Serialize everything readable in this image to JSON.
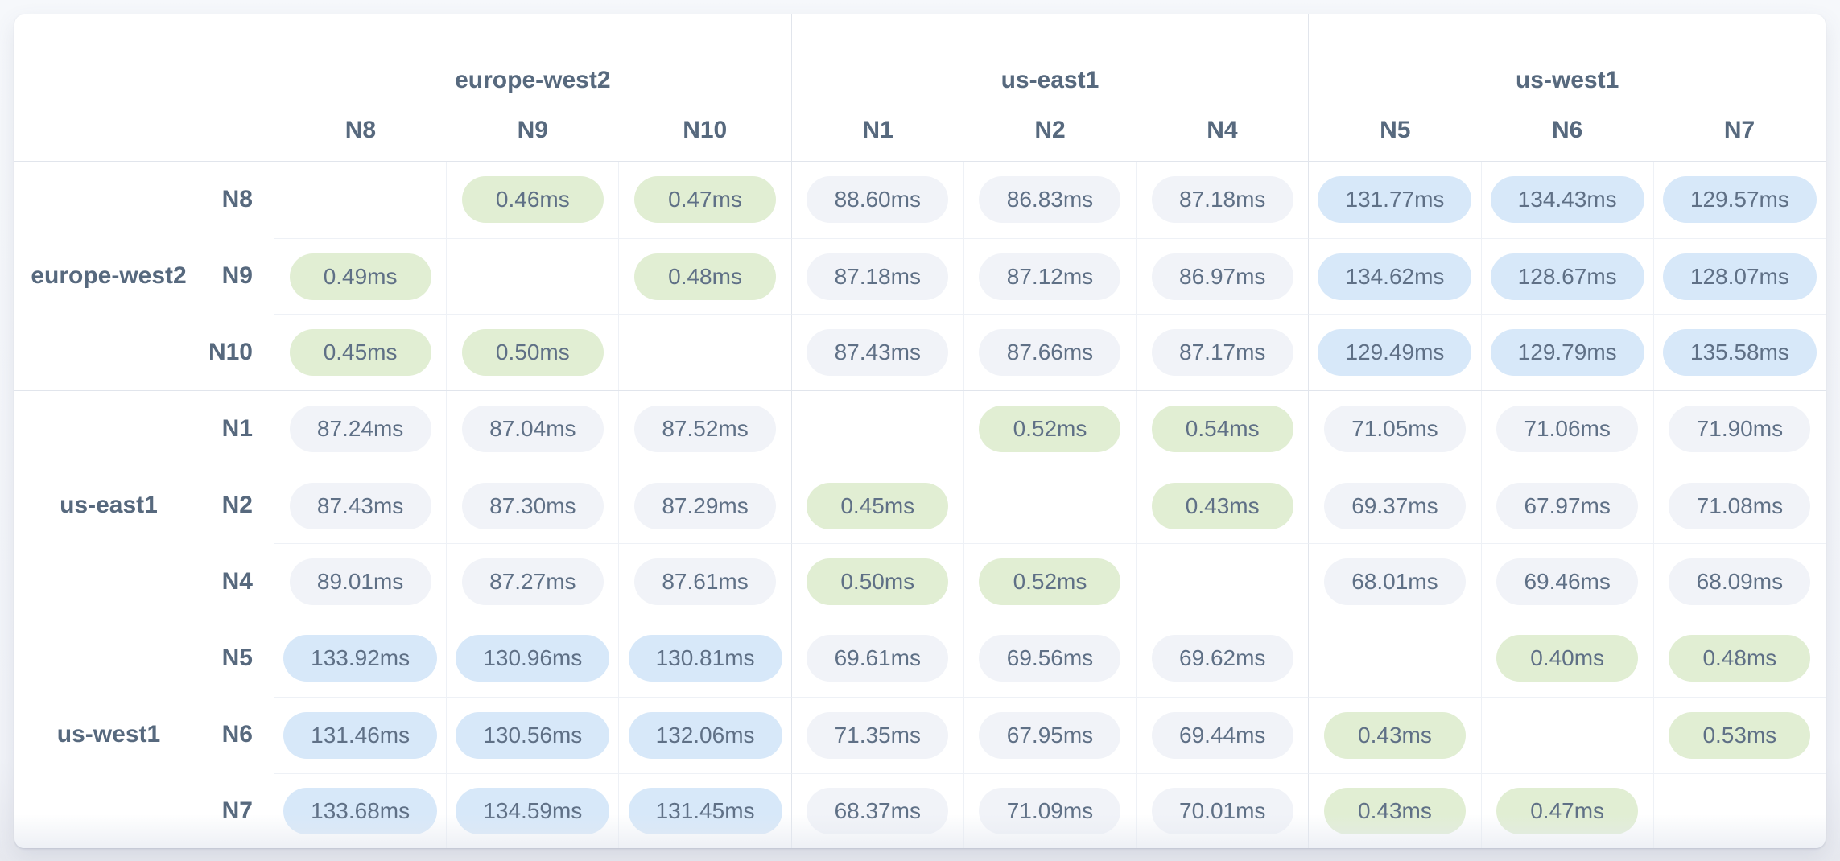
{
  "colors": {
    "page_bg": "#f1f3f8",
    "table_bg": "#ffffff",
    "label_text": "#57697e",
    "pill_text": "#5f7086",
    "group_border": "#e1e5ec",
    "cell_border": "#eef1f6",
    "intra_region_pill_bg": "#e1eed3",
    "inter_region_medium_pill_bg": "#f1f3f8",
    "inter_region_high_pill_bg": "#d7e8f9"
  },
  "chart_data": {
    "type": "heatmap",
    "title": "",
    "unit": "ms",
    "value_format": "0.00ms",
    "regions": [
      {
        "name": "europe-west2",
        "nodes": [
          "N8",
          "N9",
          "N10"
        ]
      },
      {
        "name": "us-east1",
        "nodes": [
          "N1",
          "N2",
          "N4"
        ]
      },
      {
        "name": "us-west1",
        "nodes": [
          "N5",
          "N6",
          "N7"
        ]
      }
    ],
    "nodes": [
      "N8",
      "N9",
      "N10",
      "N1",
      "N2",
      "N4",
      "N5",
      "N6",
      "N7"
    ],
    "values_ms": [
      [
        null,
        0.46,
        0.47,
        88.6,
        86.83,
        87.18,
        131.77,
        134.43,
        129.57
      ],
      [
        0.49,
        null,
        0.48,
        87.18,
        87.12,
        86.97,
        134.62,
        128.67,
        128.07
      ],
      [
        0.45,
        0.5,
        null,
        87.43,
        87.66,
        87.17,
        129.49,
        129.79,
        135.58
      ],
      [
        87.24,
        87.04,
        87.52,
        null,
        0.52,
        0.54,
        71.05,
        71.06,
        71.9
      ],
      [
        87.43,
        87.3,
        87.29,
        0.45,
        null,
        0.43,
        69.37,
        67.97,
        71.08
      ],
      [
        89.01,
        87.27,
        87.61,
        0.5,
        0.52,
        null,
        68.01,
        69.46,
        68.09
      ],
      [
        133.92,
        130.96,
        130.81,
        69.61,
        69.56,
        69.62,
        null,
        0.4,
        0.48
      ],
      [
        131.46,
        130.56,
        132.06,
        71.35,
        67.95,
        69.44,
        0.43,
        null,
        0.53
      ],
      [
        133.68,
        134.59,
        131.45,
        68.37,
        71.09,
        70.01,
        0.43,
        0.47,
        null
      ]
    ],
    "color_tiers": [
      {
        "label": "intra-region",
        "max_ms": 1,
        "bg": "#e1eed3"
      },
      {
        "label": "inter-region-medium",
        "max_ms": 100,
        "bg": "#f1f3f8"
      },
      {
        "label": "inter-region-high",
        "max_ms": null,
        "bg": "#d7e8f9"
      }
    ],
    "layout": {
      "row_groups": true,
      "column_groups": true,
      "grid": true,
      "legend": "none",
      "diagonal": "empty"
    }
  }
}
